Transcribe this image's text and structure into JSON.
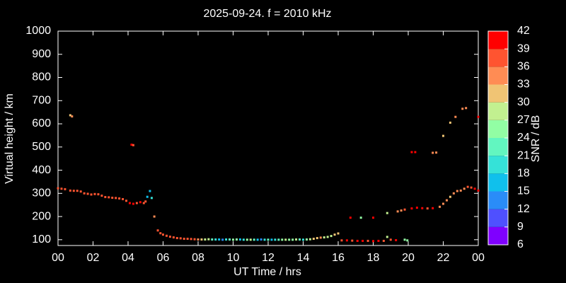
{
  "chart_data": {
    "type": "scatter",
    "title": "2025-09-24. f = 2010 kHz",
    "xlabel": "UT Time / hrs",
    "ylabel": "Virtual height / km",
    "xlim": [
      0,
      24
    ],
    "ylim": [
      75,
      1000
    ],
    "xticks": [
      {
        "value": 0,
        "label": "00"
      },
      {
        "value": 2,
        "label": "02"
      },
      {
        "value": 4,
        "label": "04"
      },
      {
        "value": 6,
        "label": "06"
      },
      {
        "value": 8,
        "label": "08"
      },
      10,
      12,
      14,
      16,
      18,
      20,
      22,
      {
        "value": 24,
        "label": "00"
      }
    ],
    "yticks": [
      100,
      200,
      300,
      400,
      500,
      600,
      700,
      800,
      900,
      1000
    ],
    "x": [
      0.0,
      0.2,
      0.4,
      0.7,
      0.9,
      1.1,
      1.3,
      1.5,
      1.7,
      1.9,
      2.1,
      2.3,
      2.5,
      2.7,
      2.9,
      3.1,
      3.3,
      3.5,
      3.7,
      3.9,
      4.1,
      4.3,
      4.5,
      4.7,
      4.9,
      5.0,
      5.1,
      5.25,
      5.35,
      5.5,
      5.7,
      5.85,
      6.0,
      6.2,
      6.4,
      6.6,
      6.8,
      7.0,
      7.2,
      7.4,
      7.6,
      7.8,
      8.0,
      8.2,
      8.4,
      8.6,
      8.8,
      9.0,
      9.2,
      9.4,
      9.6,
      9.8,
      10.0,
      10.2,
      10.4,
      10.6,
      10.8,
      11.0,
      11.2,
      11.4,
      11.6,
      11.8,
      12.0,
      12.2,
      12.4,
      12.6,
      12.8,
      13.0,
      13.2,
      13.4,
      13.6,
      13.8,
      14.0,
      14.2,
      14.4,
      14.6,
      14.8,
      15.0,
      15.2,
      15.4,
      15.6,
      15.8,
      16.0,
      16.2,
      16.5,
      16.8,
      17.1,
      17.4,
      17.7,
      18.0,
      18.3,
      18.6,
      18.8,
      19.0,
      19.3,
      19.8,
      19.95,
      0.7,
      0.8,
      4.2,
      4.3,
      16.7,
      17.3,
      18.0,
      18.8,
      19.4,
      19.6,
      19.8,
      20.2,
      20.5,
      20.8,
      21.1,
      21.4,
      20.2,
      20.4,
      21.4,
      21.6,
      21.8,
      22.0,
      22.2,
      22.4,
      22.6,
      22.8,
      23.0,
      23.2,
      23.4,
      23.6,
      23.8,
      24.0,
      22.0,
      22.4,
      22.7,
      23.1,
      23.3,
      24.0
    ],
    "y": [
      322,
      320,
      318,
      312,
      311,
      311,
      308,
      300,
      298,
      295,
      297,
      296,
      290,
      284,
      283,
      281,
      280,
      278,
      275,
      268,
      258,
      255,
      258,
      262,
      258,
      265,
      285,
      310,
      280,
      200,
      140,
      128,
      122,
      117,
      113,
      110,
      107,
      106,
      104,
      104,
      103,
      102,
      101,
      101,
      101,
      102,
      101,
      101,
      101,
      100,
      101,
      101,
      100,
      101,
      101,
      100,
      100,
      100,
      100,
      100,
      101,
      100,
      100,
      100,
      100,
      100,
      100,
      100,
      100,
      100,
      101,
      101,
      100,
      101,
      102,
      104,
      107,
      109,
      110,
      112,
      116,
      122,
      127,
      97,
      97,
      96,
      95,
      95,
      95,
      94,
      95,
      95,
      112,
      100,
      98,
      100,
      97,
      637,
      632,
      510,
      508,
      195,
      195,
      195,
      215,
      222,
      226,
      230,
      235,
      238,
      236,
      235,
      236,
      478,
      478,
      475,
      476,
      242,
      255,
      270,
      285,
      300,
      310,
      312,
      320,
      328,
      325,
      320,
      312,
      548,
      605,
      630,
      665,
      668,
      630
    ],
    "snr": [
      37,
      38,
      37,
      38,
      37,
      38,
      36,
      37,
      38,
      37,
      36,
      37,
      38,
      37,
      36,
      37,
      36,
      37,
      38,
      37,
      39,
      40,
      37,
      39,
      37,
      36,
      16,
      17,
      19,
      33,
      36,
      37,
      38,
      37,
      38,
      37,
      38,
      37,
      36,
      38,
      37,
      36,
      33,
      30,
      28,
      27,
      22,
      19,
      16,
      14,
      18,
      22,
      26,
      24,
      16,
      20,
      24,
      27,
      22,
      15,
      13,
      18,
      21,
      16,
      18,
      23,
      25,
      27,
      24,
      26,
      27,
      23,
      18,
      25,
      28,
      30,
      31,
      33,
      29,
      28,
      27,
      31,
      32,
      37,
      40,
      38,
      39,
      40,
      38,
      39,
      40,
      38,
      27,
      37,
      39,
      26,
      25,
      32,
      33,
      39,
      38,
      39,
      26,
      40,
      27,
      34,
      35,
      36,
      40,
      39,
      40,
      38,
      40,
      39,
      40,
      34,
      33,
      35,
      34,
      33,
      32,
      34,
      33,
      34,
      35,
      36,
      38,
      39,
      40,
      31,
      30,
      34,
      35,
      34,
      40
    ],
    "colorbar": {
      "label": "SNR / dB",
      "lim": [
        6,
        42
      ],
      "ticks": [
        6,
        9,
        12,
        15,
        18,
        21,
        24,
        27,
        30,
        33,
        36,
        39,
        42
      ],
      "colors": [
        "#7f00ff",
        "#4f50ff",
        "#2a8cf8",
        "#10c0ec",
        "#35e2d8",
        "#62f6c0",
        "#92fea4",
        "#c2f090",
        "#f0c474",
        "#ff8c54",
        "#ff5430",
        "#ff0000"
      ]
    }
  }
}
